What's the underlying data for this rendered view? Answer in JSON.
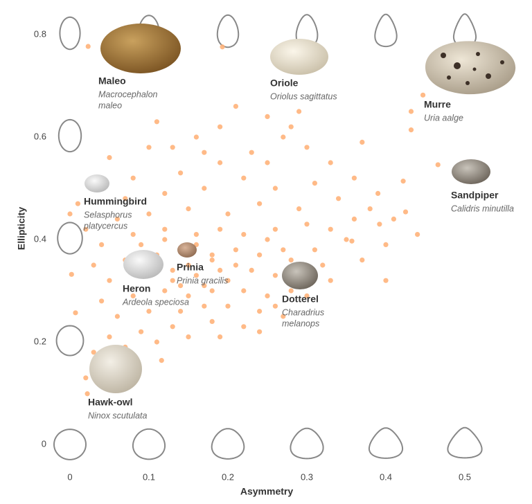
{
  "chart_data": {
    "type": "scatter",
    "xlabel": "Asymmetry",
    "ylabel": "Ellipticity",
    "xlim": [
      -0.05,
      0.55
    ],
    "ylim": [
      -0.05,
      0.85
    ],
    "xticks": [
      0,
      0.1,
      0.2,
      0.3,
      0.4,
      0.5
    ],
    "yticks": [
      0,
      0.2,
      0.4,
      0.6,
      0.8
    ],
    "grid": false,
    "series": [
      {
        "color": "#ffb27a",
        "x": [
          0.023,
          0.193,
          0.447,
          0.432,
          0.432,
          0.466,
          0.422,
          0.425,
          0.392,
          0.357,
          0.116,
          0.022,
          0.007,
          0.002,
          0.19,
          0.21,
          0.25,
          0.28,
          0.16,
          0.1,
          0.3,
          0.27,
          0.23,
          0.19,
          0.14,
          0.08,
          0.05,
          0.03,
          0.12,
          0.17,
          0.22,
          0.26,
          0.31,
          0.34,
          0.29,
          0.24,
          0.2,
          0.15,
          0.1,
          0.06,
          0.02,
          0.04,
          0.08,
          0.12,
          0.16,
          0.19,
          0.22,
          0.26,
          0.3,
          0.33,
          0.36,
          0.38,
          0.35,
          0.31,
          0.27,
          0.24,
          0.21,
          0.18,
          0.14,
          0.11,
          0.07,
          0.03,
          0.05,
          0.09,
          0.13,
          0.16,
          0.19,
          0.23,
          0.26,
          0.29,
          0.32,
          0.28,
          0.25,
          0.22,
          0.18,
          0.15,
          0.12,
          0.08,
          0.04,
          0.06,
          0.1,
          0.14,
          0.17,
          0.2,
          0.24,
          0.27,
          0.22,
          0.18,
          0.13,
          0.09,
          0.05,
          0.03,
          0.07,
          0.11,
          0.15,
          0.19,
          0.24,
          0.04,
          0.08,
          0.02,
          0.13,
          0.15,
          0.17,
          0.2,
          0.11,
          0.14,
          0.18,
          0.21,
          0.16,
          0.12,
          0.09,
          0.25,
          0.28,
          0.33,
          0.37,
          0.4,
          0.44,
          0.41,
          0.39,
          0.36,
          0.33,
          0.37,
          0.29,
          0.13,
          0.07,
          0.01,
          0.0,
          0.11,
          0.17,
          0.25,
          0.4,
          0.26,
          0.3
        ],
        "values": [
          0.777,
          0.776,
          0.682,
          0.65,
          0.614,
          0.546,
          0.514,
          0.454,
          0.43,
          0.397,
          0.164,
          0.099,
          0.257,
          0.332,
          0.62,
          0.66,
          0.64,
          0.62,
          0.6,
          0.58,
          0.58,
          0.6,
          0.57,
          0.55,
          0.53,
          0.52,
          0.56,
          0.51,
          0.49,
          0.5,
          0.52,
          0.5,
          0.51,
          0.48,
          0.46,
          0.47,
          0.45,
          0.46,
          0.45,
          0.44,
          0.42,
          0.39,
          0.41,
          0.42,
          0.41,
          0.42,
          0.41,
          0.42,
          0.43,
          0.42,
          0.44,
          0.46,
          0.4,
          0.38,
          0.38,
          0.37,
          0.38,
          0.37,
          0.38,
          0.37,
          0.36,
          0.35,
          0.32,
          0.33,
          0.34,
          0.33,
          0.34,
          0.34,
          0.33,
          0.34,
          0.35,
          0.3,
          0.29,
          0.3,
          0.3,
          0.29,
          0.3,
          0.29,
          0.28,
          0.25,
          0.26,
          0.26,
          0.27,
          0.27,
          0.26,
          0.25,
          0.23,
          0.24,
          0.23,
          0.22,
          0.21,
          0.18,
          0.19,
          0.2,
          0.21,
          0.21,
          0.22,
          0.15,
          0.16,
          0.13,
          0.32,
          0.35,
          0.31,
          0.32,
          0.34,
          0.31,
          0.36,
          0.35,
          0.39,
          0.4,
          0.39,
          0.4,
          0.36,
          0.32,
          0.36,
          0.39,
          0.41,
          0.44,
          0.49,
          0.52,
          0.55,
          0.59,
          0.65,
          0.58,
          0.48,
          0.47,
          0.45,
          0.63,
          0.57,
          0.55,
          0.32,
          0.27,
          0.29
        ]
      }
    ],
    "annotations": [
      {
        "name": "Maleo",
        "species": [
          "Macrocephalon",
          "maleo"
        ]
      },
      {
        "name": "Oriole",
        "species": [
          "Oriolus sagittatus"
        ]
      },
      {
        "name": "Murre",
        "species": [
          "Uria aalge"
        ]
      },
      {
        "name": "Sandpiper",
        "species": [
          "Calidris minutilla"
        ]
      },
      {
        "name": "Hummingbird",
        "species": [
          "Selasphorus",
          "platycercus"
        ]
      },
      {
        "name": "Prinia",
        "species": [
          "Prinia gracilis"
        ]
      },
      {
        "name": "Heron",
        "species": [
          "Ardeola speciosa"
        ]
      },
      {
        "name": "Dotterel",
        "species": [
          "Charadrius",
          "melanops"
        ]
      },
      {
        "name": "Hawk-owl",
        "species": [
          "Ninox scutulata"
        ]
      }
    ]
  }
}
